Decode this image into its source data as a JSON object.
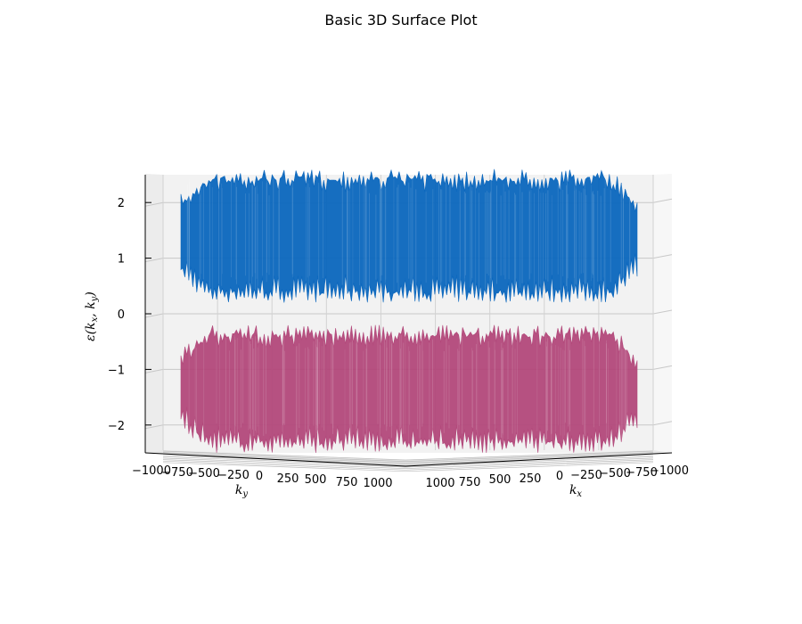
{
  "chart_data": {
    "type": "surface3d",
    "title": "Basic 3D Surface Plot",
    "xlabel": "k_x",
    "ylabel": "k_y",
    "zlabel": "ε(k_x, k_y)",
    "xlim": [
      -1000,
      1000
    ],
    "ylim": [
      -1000,
      1000
    ],
    "zlim": [
      -2.5,
      2.5
    ],
    "x_ticks": [
      "−1000",
      "−750",
      "−500",
      "−250",
      "0",
      "250",
      "500",
      "750",
      "1000"
    ],
    "y_ticks": [
      "−1000",
      "−750",
      "−500",
      "−250",
      "0",
      "250",
      "500",
      "750",
      "1000"
    ],
    "z_ticks": [
      -2,
      -1,
      0,
      1,
      2
    ],
    "grid": true,
    "series": [
      {
        "band": "upper",
        "z_range": [
          0.2,
          2.6
        ],
        "color": "#0a66bd"
      },
      {
        "band": "lower",
        "z_range": [
          -2.5,
          -0.2
        ],
        "color": "#b2487a"
      }
    ]
  }
}
